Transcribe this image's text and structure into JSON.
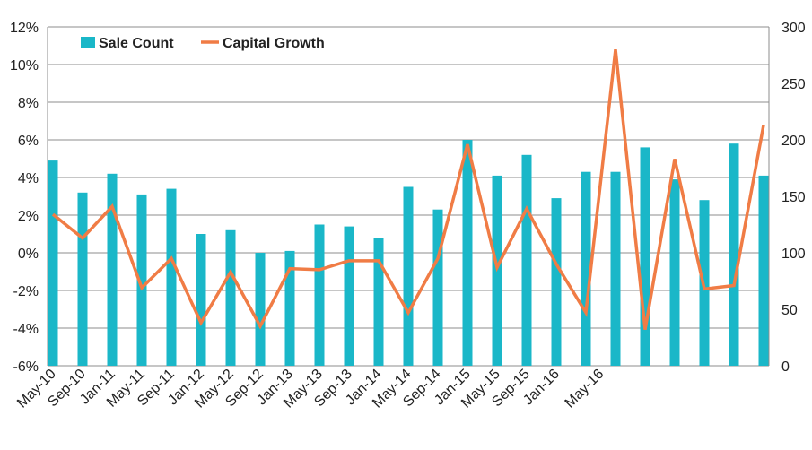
{
  "chart_data": {
    "type": "bar",
    "colors": {
      "bar": "#1ab7c8",
      "line": "#f07c45",
      "grid": "#8c8c8c"
    },
    "categories": [
      "May-10",
      "Sep-10",
      "Jan-11",
      "May-11",
      "Sep-11",
      "Jan-12",
      "May-12",
      "Sep-12",
      "Jan-13",
      "May-13",
      "Sep-13",
      "Jan-14",
      "May-14",
      "Sep-14",
      "Jan-15",
      "May-15",
      "Sep-15",
      "Jan-16",
      "May-16"
    ],
    "x_tick_positions": [
      0,
      2,
      4,
      6,
      8,
      10,
      12,
      14,
      16,
      18,
      20,
      22,
      24,
      26,
      28,
      30,
      32,
      34,
      37
    ],
    "left_axis": {
      "ylim": [
        -6,
        12
      ],
      "ticks": [
        "-6%",
        "-4%",
        "-2%",
        "0%",
        "2%",
        "4%",
        "6%",
        "8%",
        "10%",
        "12%"
      ],
      "tick_values": [
        -6,
        -4,
        -2,
        0,
        2,
        4,
        6,
        8,
        10,
        12
      ]
    },
    "right_axis": {
      "ylim": [
        0,
        300
      ],
      "ticks": [
        "0",
        "50",
        "100",
        "150",
        "200",
        "250",
        "300"
      ],
      "tick_values": [
        0,
        50,
        100,
        150,
        200,
        250,
        300
      ]
    },
    "series": [
      {
        "name": "Sale Count",
        "type": "bar",
        "axis": "left",
        "x": [
          0,
          2,
          4,
          6,
          8,
          10,
          12,
          14,
          16,
          18,
          20,
          22,
          24,
          26,
          28,
          30,
          32,
          34,
          36,
          38,
          40,
          42,
          44,
          46,
          48
        ],
        "values": [
          4.9,
          3.2,
          4.2,
          3.1,
          3.4,
          1.0,
          1.2,
          0.0,
          0.1,
          1.5,
          1.4,
          0.8,
          3.5,
          2.3,
          6.0,
          4.1,
          5.2,
          2.9,
          4.3,
          4.3,
          5.6,
          3.9,
          2.8,
          5.8,
          4.1
        ]
      },
      {
        "name": "Capital Growth",
        "type": "line",
        "axis": "right",
        "x": [
          0,
          2,
          4,
          6,
          8,
          10,
          12,
          14,
          16,
          18,
          20,
          22,
          24,
          26,
          28,
          30,
          32,
          34,
          36,
          38,
          40,
          42,
          44,
          46,
          48
        ],
        "values": [
          134,
          113,
          141,
          69,
          95,
          38,
          83,
          35,
          86,
          85,
          93,
          93,
          47,
          95,
          196,
          87,
          139,
          90,
          47,
          280,
          32,
          183,
          68,
          71,
          213
        ]
      }
    ],
    "legend": {
      "position": "top-left",
      "entries": [
        "Sale Count",
        "Capital Growth"
      ]
    },
    "grid": true
  }
}
